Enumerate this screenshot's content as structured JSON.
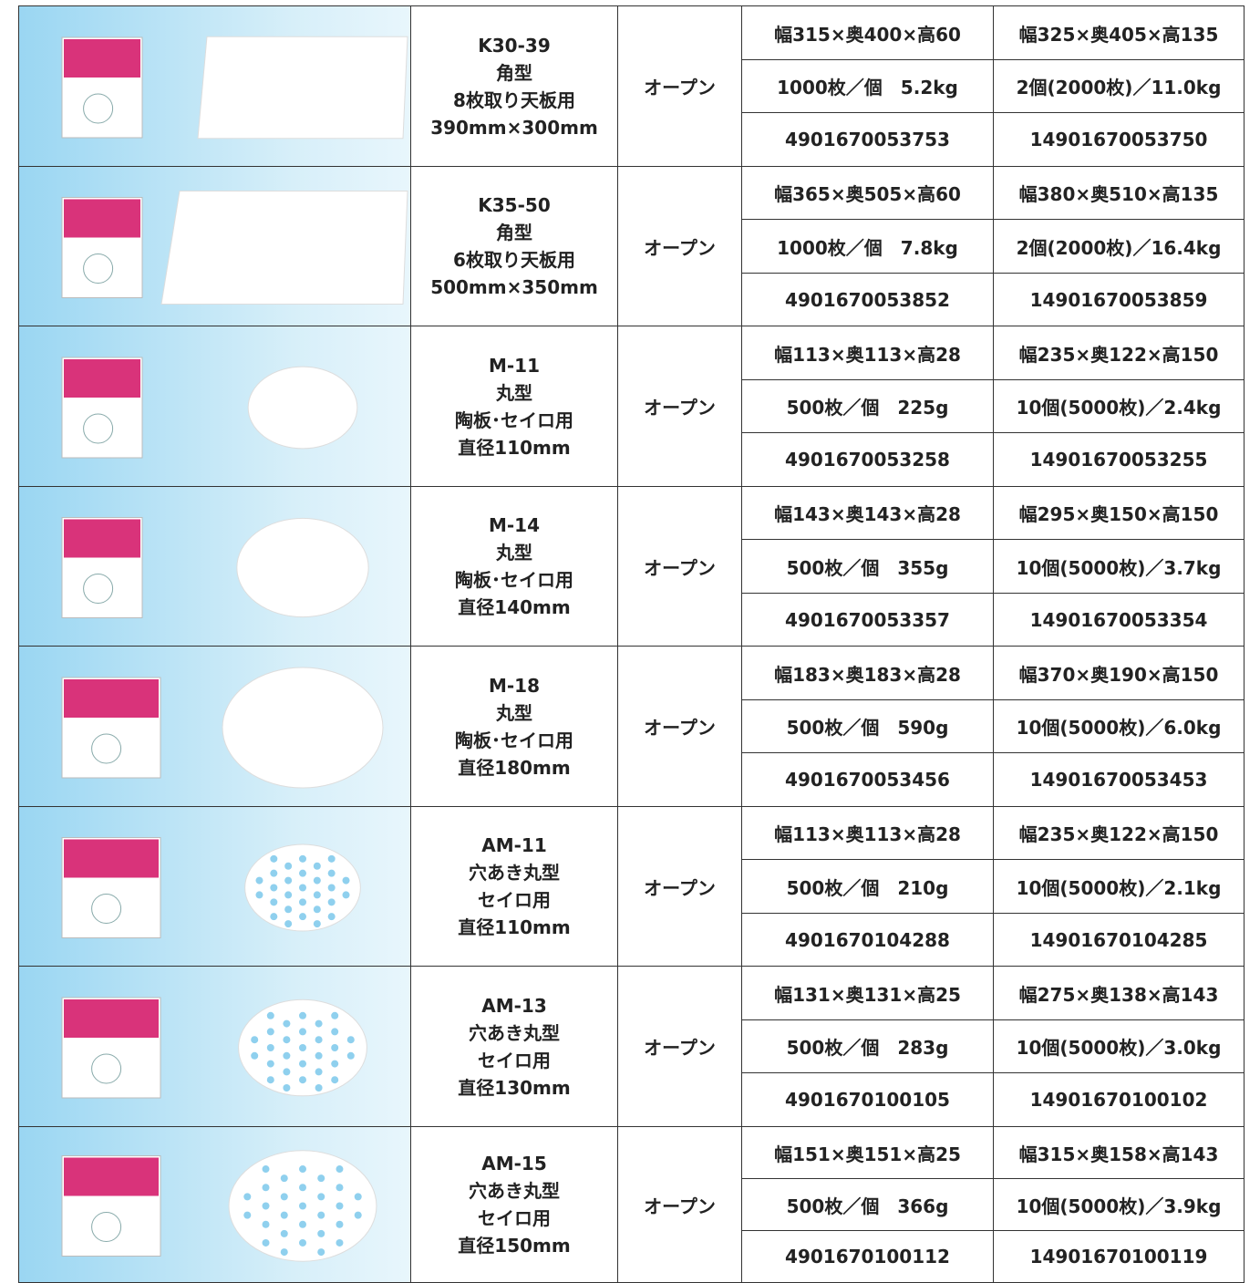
{
  "table": {
    "rows": [
      {
        "code": "K30-39",
        "shape": "角型",
        "use": "8枚取り天板用",
        "size": "390mm×300mm",
        "price": "オープン",
        "specs": [
          [
            "幅315×奥400×高60",
            "幅325×奥405×高135"
          ],
          [
            "1000枚／個　5.2kg",
            "2個(2000枚)／11.0kg"
          ],
          [
            "4901670053753",
            "14901670053750"
          ]
        ]
      },
      {
        "code": "K35-50",
        "shape": "角型",
        "use": "6枚取り天板用",
        "size": "500mm×350mm",
        "price": "オープン",
        "specs": [
          [
            "幅365×奥505×高60",
            "幅380×奥510×高135"
          ],
          [
            "1000枚／個　7.8kg",
            "2個(2000枚)／16.4kg"
          ],
          [
            "4901670053852",
            "14901670053859"
          ]
        ]
      },
      {
        "code": "M-11",
        "shape": "丸型",
        "use": "陶板･セイロ用",
        "size": "直径110mm",
        "price": "オープン",
        "specs": [
          [
            "幅113×奥113×高28",
            "幅235×奥122×高150"
          ],
          [
            "500枚／個　225g",
            "10個(5000枚)／2.4kg"
          ],
          [
            "4901670053258",
            "14901670053255"
          ]
        ]
      },
      {
        "code": "M-14",
        "shape": "丸型",
        "use": "陶板･セイロ用",
        "size": "直径140mm",
        "price": "オープン",
        "specs": [
          [
            "幅143×奥143×高28",
            "幅295×奥150×高150"
          ],
          [
            "500枚／個　355g",
            "10個(5000枚)／3.7kg"
          ],
          [
            "4901670053357",
            "14901670053354"
          ]
        ]
      },
      {
        "code": "M-18",
        "shape": "丸型",
        "use": "陶板･セイロ用",
        "size": "直径180mm",
        "price": "オープン",
        "specs": [
          [
            "幅183×奥183×高28",
            "幅370×奥190×高150"
          ],
          [
            "500枚／個　590g",
            "10個(5000枚)／6.0kg"
          ],
          [
            "4901670053456",
            "14901670053453"
          ]
        ]
      },
      {
        "code": "AM-11",
        "shape": "穴あき丸型",
        "use": "セイロ用",
        "size": "直径110mm",
        "price": "オープン",
        "specs": [
          [
            "幅113×奥113×高28",
            "幅235×奥122×高150"
          ],
          [
            "500枚／個　210g",
            "10個(5000枚)／2.1kg"
          ],
          [
            "4901670104288",
            "14901670104285"
          ]
        ]
      },
      {
        "code": "AM-13",
        "shape": "穴あき丸型",
        "use": "セイロ用",
        "size": "直径130mm",
        "price": "オープン",
        "specs": [
          [
            "幅131×奥131×高25",
            "幅275×奥138×高143"
          ],
          [
            "500枚／個　283g",
            "10個(5000枚)／3.0kg"
          ],
          [
            "4901670100105",
            "14901670100102"
          ]
        ]
      },
      {
        "code": "AM-15",
        "shape": "穴あき丸型",
        "use": "セイロ用",
        "size": "直径150mm",
        "price": "オープン",
        "specs": [
          [
            "幅151×奥151×高25",
            "幅315×奥158×高143"
          ],
          [
            "500枚／個　366g",
            "10個(5000枚)／3.9kg"
          ],
          [
            "4901670100112",
            "14901670100119"
          ]
        ]
      }
    ]
  }
}
